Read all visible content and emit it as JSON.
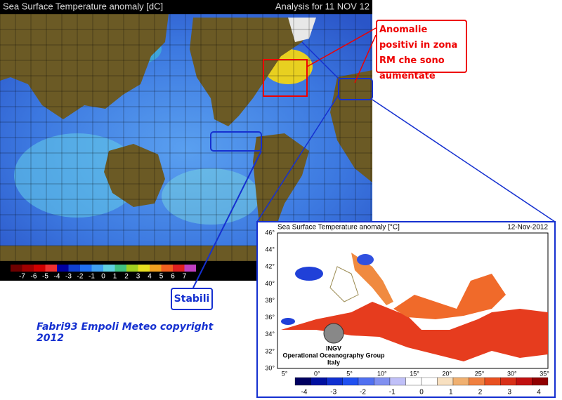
{
  "main_map": {
    "title": "Sea Surface Temperature anomaly [dC]",
    "analysis": "Analysis for 11 NOV 12",
    "colorbar_ticks": [
      -7,
      -6,
      -5,
      -4,
      -3,
      -2,
      -1,
      0,
      1,
      2,
      3,
      4,
      5,
      6,
      7
    ]
  },
  "annotations": {
    "positive": "Anomalie positivi in zona RM che sono aumentate",
    "stable": "Stabili",
    "credit": "Fabri93 Empoli Meteo copyright 2012"
  },
  "inset_map": {
    "title": "Sea Surface Temperature anomaly [°C]",
    "date": "12-Nov-2012",
    "lat_labels": [
      "46°",
      "44°",
      "42°",
      "40°",
      "38°",
      "36°",
      "34°",
      "32°",
      "30°"
    ],
    "lon_labels": [
      "5°",
      "0°",
      "5°",
      "10°",
      "15°",
      "20°",
      "25°",
      "30°",
      "35°"
    ],
    "colorbar_ticks": [
      -4,
      -3,
      -2,
      -1,
      0,
      1,
      2,
      3,
      4
    ],
    "logo": {
      "name": "INGV",
      "group": "Operational Oceanography Group",
      "country": "Italy"
    }
  }
}
